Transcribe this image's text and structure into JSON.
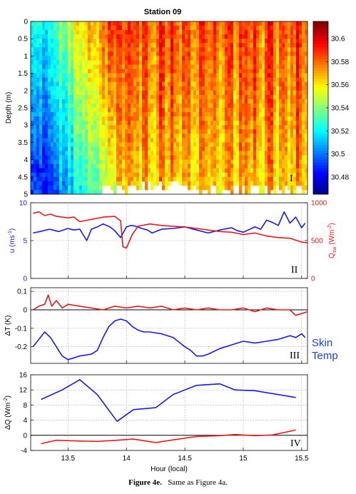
{
  "caption": {
    "label": "Figure 4e.",
    "text": "Same as Figure 4a."
  },
  "chart_data": [
    {
      "type": "heatmap",
      "title": "Station 09",
      "ylabel": "Depth (m)",
      "panel_label": "I",
      "yticks": [
        "0",
        "0.5",
        "1",
        "1.5",
        "2",
        "2.5",
        "3",
        "3.5",
        "4",
        "4.5",
        "5"
      ],
      "ylim": [
        0,
        5
      ],
      "xlim": [
        13.18,
        15.55
      ],
      "colorbar": {
        "ticks": [
          "30.48",
          "30.5",
          "30.52",
          "30.54",
          "30.56",
          "30.58",
          "30.6"
        ],
        "range": [
          30.465,
          30.615
        ],
        "colormap": "jet"
      }
    },
    {
      "type": "line",
      "panel_label": "II",
      "xlim": [
        13.18,
        15.55
      ],
      "left_axis": {
        "label": "u (ms",
        "label_sup": "-1",
        "label_end": ")",
        "ticks": [
          "0",
          "5",
          "10"
        ],
        "ylim": [
          0,
          10
        ],
        "color": "#1a1ae6"
      },
      "right_axis": {
        "label": "Q",
        "label_sub": "sw",
        "label_mid": " (Wm",
        "label_sup": "-2",
        "label_end": ")",
        "ticks": [
          "0",
          "500",
          "1000"
        ],
        "ylim": [
          0,
          1000
        ],
        "color": "#e61a1a"
      },
      "series": [
        {
          "color": "#1a1ae6",
          "axis": "left",
          "x": [
            13.2,
            13.26,
            13.34,
            13.42,
            13.5,
            13.55,
            13.6,
            13.66,
            13.7,
            13.75,
            13.8,
            13.86,
            13.9,
            13.95,
            14.0,
            14.04,
            14.08,
            14.13,
            14.18,
            14.22,
            14.3,
            14.4,
            14.5,
            14.6,
            14.7,
            14.8,
            14.9,
            14.95,
            15.0,
            15.1,
            15.15,
            15.2,
            15.25,
            15.3,
            15.35,
            15.4,
            15.45,
            15.5,
            15.53
          ],
          "y": [
            6.0,
            6.2,
            6.5,
            6.2,
            6.6,
            6.4,
            6.5,
            5.0,
            6.5,
            6.8,
            7.2,
            6.8,
            6.3,
            5.4,
            6.8,
            7.0,
            6.9,
            6.6,
            6.4,
            6.0,
            6.5,
            6.6,
            6.8,
            6.4,
            6.0,
            6.4,
            6.7,
            6.3,
            6.1,
            6.8,
            6.5,
            7.7,
            7.4,
            7.0,
            8.8,
            7.3,
            8.1,
            6.7,
            7.3
          ]
        },
        {
          "color": "#e61a1a",
          "axis": "right",
          "x": [
            13.2,
            13.25,
            13.3,
            13.35,
            13.4,
            13.5,
            13.55,
            13.6,
            13.7,
            13.8,
            13.9,
            13.95,
            13.97,
            14.0,
            14.05,
            14.1,
            14.2,
            14.3,
            14.4,
            14.5,
            14.6,
            14.7,
            14.8,
            14.9,
            15.0,
            15.1,
            15.2,
            15.3,
            15.4,
            15.5,
            15.55
          ],
          "y": [
            860,
            880,
            830,
            850,
            820,
            800,
            810,
            750,
            780,
            810,
            820,
            760,
            420,
            400,
            580,
            690,
            720,
            700,
            690,
            680,
            660,
            640,
            620,
            610,
            580,
            600,
            560,
            540,
            530,
            480,
            470
          ]
        }
      ]
    },
    {
      "type": "line",
      "panel_label": "III",
      "annotation": [
        "Skin",
        "Temp"
      ],
      "xlim": [
        13.18,
        15.55
      ],
      "ylabel": "ΔT (K)",
      "yticks": [
        "-0.2",
        "-0.1",
        "0",
        "0.1"
      ],
      "ylim": [
        -0.29,
        0.12
      ],
      "series": [
        {
          "color": "#1a1ae6",
          "x": [
            13.2,
            13.25,
            13.3,
            13.35,
            13.4,
            13.45,
            13.5,
            13.6,
            13.7,
            13.75,
            13.8,
            13.85,
            13.9,
            13.95,
            14.0,
            14.05,
            14.1,
            14.15,
            14.2,
            14.3,
            14.4,
            14.5,
            14.55,
            14.6,
            14.65,
            14.7,
            14.8,
            14.9,
            15.0,
            15.1,
            15.2,
            15.3,
            15.4,
            15.45,
            15.5,
            15.53
          ],
          "y": [
            -0.2,
            -0.16,
            -0.12,
            -0.15,
            -0.2,
            -0.25,
            -0.27,
            -0.25,
            -0.24,
            -0.22,
            -0.15,
            -0.09,
            -0.06,
            -0.05,
            -0.06,
            -0.09,
            -0.11,
            -0.12,
            -0.12,
            -0.13,
            -0.15,
            -0.2,
            -0.22,
            -0.25,
            -0.25,
            -0.24,
            -0.21,
            -0.19,
            -0.17,
            -0.18,
            -0.17,
            -0.16,
            -0.14,
            -0.15,
            -0.13,
            -0.15
          ]
        },
        {
          "color": "#e61a1a",
          "x": [
            13.2,
            13.25,
            13.3,
            13.33,
            13.36,
            13.4,
            13.45,
            13.5,
            13.6,
            13.7,
            13.8,
            13.9,
            14.0,
            14.1,
            14.2,
            14.3,
            14.4,
            14.5,
            14.6,
            14.7,
            14.8,
            14.9,
            15.0,
            15.1,
            15.2,
            15.3,
            15.4,
            15.45,
            15.5,
            15.55
          ],
          "y": [
            0.0,
            0.02,
            0.03,
            0.08,
            0.02,
            0.05,
            0.01,
            0.03,
            0.02,
            0.01,
            0.0,
            0.02,
            0.01,
            0.02,
            0.01,
            0.02,
            0.0,
            0.01,
            0.0,
            0.01,
            0.0,
            0.0,
            0.01,
            -0.01,
            0.01,
            0.0,
            0.0,
            -0.03,
            -0.02,
            -0.01
          ]
        }
      ]
    },
    {
      "type": "line",
      "panel_label": "IV",
      "xlim": [
        13.18,
        15.55
      ],
      "ylabel": "ΔQ (Wm",
      "ylabel_sup": "-2",
      "ylabel_end": ")",
      "xlabel": "Hour (local)",
      "xticks": [
        "13.5",
        "14",
        "14.5",
        "15",
        "15.5"
      ],
      "xtick_values": [
        13.5,
        14.0,
        14.5,
        15.0,
        15.5
      ],
      "yticks": [
        "-4",
        "0",
        "4",
        "8",
        "12",
        "16"
      ],
      "ylim": [
        -4,
        16
      ],
      "series": [
        {
          "color": "#1a1ae6",
          "x": [
            13.27,
            13.45,
            13.6,
            13.75,
            13.92,
            14.06,
            14.25,
            14.4,
            14.6,
            14.8,
            14.93,
            15.1,
            15.45
          ],
          "y": [
            9.5,
            12.0,
            14.7,
            10.8,
            3.7,
            6.8,
            7.3,
            10.8,
            13.2,
            13.6,
            12.0,
            11.8,
            10.0
          ]
        },
        {
          "color": "#e61a1a",
          "x": [
            13.27,
            13.4,
            13.6,
            13.75,
            13.92,
            14.06,
            14.25,
            14.4,
            14.6,
            14.8,
            14.93,
            15.1,
            15.25,
            15.45
          ],
          "y": [
            -2.2,
            -1.3,
            -1.5,
            -1.6,
            -1.3,
            -1.0,
            -1.9,
            -1.2,
            -0.3,
            -0.1,
            0.2,
            -0.1,
            0.1,
            1.4
          ]
        }
      ]
    }
  ]
}
